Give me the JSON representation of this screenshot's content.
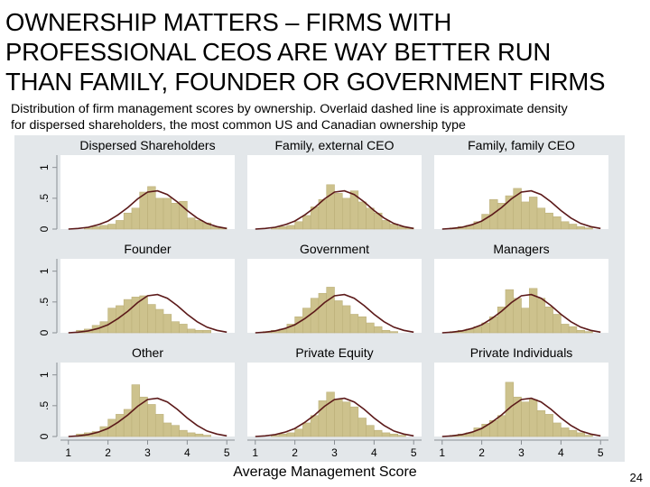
{
  "slide": {
    "title_lines": [
      "OWNERSHIP MATTERS – FIRMS WITH",
      "PROFESSIONAL CEOS ARE WAY BETTER RUN",
      "THAN FAMILY, FOUNDER OR GOVERNMENT FIRMS"
    ],
    "subtitle_lines": [
      "Distribution of firm management scores by ownership. Overlaid dashed line is approximate density",
      "for dispersed shareholders, the most common US and Canadian ownership type"
    ],
    "page_number": "24"
  },
  "chart_data": {
    "type": "bar",
    "title": "",
    "xlabel": "Average Management Score",
    "ylabel": "",
    "xlim": [
      0.8,
      5.2
    ],
    "ylim": [
      0,
      1.2
    ],
    "xticks": [
      "1",
      "2",
      "3",
      "4",
      "5"
    ],
    "yticks": [
      "0",
      ".5",
      "1"
    ],
    "bin_edges": [
      1.0,
      1.2,
      1.4,
      1.6,
      1.8,
      2.0,
      2.2,
      2.4,
      2.6,
      2.8,
      3.0,
      3.2,
      3.4,
      3.6,
      3.8,
      4.0,
      4.2,
      4.4,
      4.6,
      4.8,
      5.0
    ],
    "reference_density": {
      "name": "Dispersed Shareholders",
      "x": [
        1.0,
        1.25,
        1.5,
        1.75,
        2.0,
        2.25,
        2.5,
        2.75,
        3.0,
        3.25,
        3.5,
        3.75,
        4.0,
        4.25,
        4.5,
        4.75,
        5.0
      ],
      "y": [
        0.0,
        0.01,
        0.03,
        0.07,
        0.13,
        0.23,
        0.35,
        0.49,
        0.6,
        0.62,
        0.56,
        0.44,
        0.3,
        0.18,
        0.09,
        0.04,
        0.01
      ]
    },
    "panels": [
      {
        "name": "Dispersed Shareholders",
        "values": [
          0.0,
          0.0,
          0.02,
          0.04,
          0.06,
          0.08,
          0.14,
          0.26,
          0.34,
          0.6,
          0.69,
          0.5,
          0.5,
          0.42,
          0.45,
          0.18,
          0.14,
          0.1,
          0.04,
          0.02
        ]
      },
      {
        "name": "Family, external CEO",
        "values": [
          0.0,
          0.0,
          0.02,
          0.04,
          0.06,
          0.12,
          0.22,
          0.36,
          0.48,
          0.72,
          0.58,
          0.5,
          0.62,
          0.44,
          0.34,
          0.26,
          0.14,
          0.08,
          0.04,
          0.02
        ]
      },
      {
        "name": "Family, family CEO",
        "values": [
          0.0,
          0.02,
          0.04,
          0.06,
          0.12,
          0.24,
          0.48,
          0.42,
          0.54,
          0.66,
          0.44,
          0.52,
          0.34,
          0.26,
          0.2,
          0.12,
          0.08,
          0.04,
          0.02,
          0.0
        ]
      },
      {
        "name": "Founder",
        "values": [
          0.0,
          0.04,
          0.06,
          0.12,
          0.18,
          0.4,
          0.44,
          0.54,
          0.58,
          0.6,
          0.46,
          0.38,
          0.3,
          0.18,
          0.14,
          0.06,
          0.04,
          0.04,
          0.0,
          0.0
        ]
      },
      {
        "name": "Government",
        "values": [
          0.0,
          0.02,
          0.04,
          0.06,
          0.14,
          0.26,
          0.4,
          0.56,
          0.64,
          0.74,
          0.52,
          0.44,
          0.3,
          0.26,
          0.16,
          0.1,
          0.04,
          0.02,
          0.0,
          0.0
        ]
      },
      {
        "name": "Managers",
        "values": [
          0.0,
          0.02,
          0.04,
          0.06,
          0.1,
          0.16,
          0.26,
          0.42,
          0.7,
          0.56,
          0.4,
          0.72,
          0.56,
          0.42,
          0.3,
          0.14,
          0.1,
          0.04,
          0.02,
          0.0
        ]
      },
      {
        "name": "Other",
        "values": [
          0.0,
          0.04,
          0.06,
          0.08,
          0.16,
          0.28,
          0.36,
          0.44,
          0.84,
          0.64,
          0.52,
          0.36,
          0.22,
          0.18,
          0.1,
          0.06,
          0.04,
          0.02,
          0.0,
          0.0
        ]
      },
      {
        "name": "Private Equity",
        "values": [
          0.0,
          0.0,
          0.02,
          0.04,
          0.06,
          0.12,
          0.22,
          0.34,
          0.58,
          0.72,
          0.6,
          0.56,
          0.48,
          0.3,
          0.18,
          0.1,
          0.06,
          0.04,
          0.02,
          0.0
        ]
      },
      {
        "name": "Private Individuals",
        "values": [
          0.0,
          0.02,
          0.04,
          0.06,
          0.14,
          0.2,
          0.26,
          0.34,
          0.88,
          0.64,
          0.56,
          0.6,
          0.42,
          0.36,
          0.22,
          0.14,
          0.1,
          0.06,
          0.02,
          0.0
        ]
      }
    ],
    "colors": {
      "bar_fill": "#cdc28d",
      "bar_stroke": "#bcb07a",
      "density_line": "#5c1a1a",
      "outer_background": "#e3e7ea",
      "panel_background": "#ffffff",
      "header_background": "#e3e7ea",
      "axis": "#8a8f94",
      "text": "#000000"
    }
  }
}
